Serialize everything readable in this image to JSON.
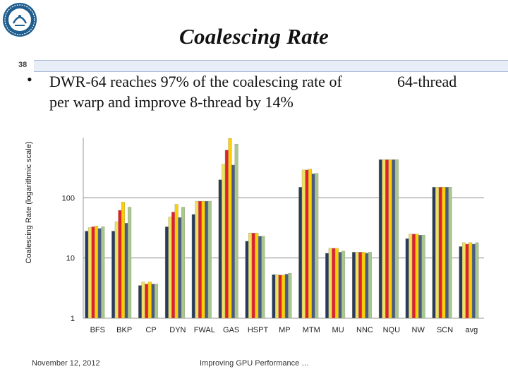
{
  "slide": {
    "title": "Coalescing Rate",
    "number": "38",
    "bullet_line1": "DWR-64 reaches 97% of the coalescing rate of",
    "bullet_line1b": "64-thread",
    "bullet_line2": "per warp and improve 8-thread by 14%",
    "footer_date": "November 12, 2012",
    "footer_title": "Improving GPU Performance …"
  },
  "colors": {
    "series": [
      "#2a3a5e",
      "#f0e060",
      "#e0202a",
      "#ffd000",
      "#4a5a80",
      "#a8c890"
    ],
    "bar_stroke": "#9a9a7a",
    "axis": "#999999",
    "grid": "#888888",
    "rule_bar": "#e8eef7"
  },
  "chart_data": {
    "type": "bar",
    "title": "",
    "xlabel": "",
    "ylabel": "Coalescing Rate (logarithmic scale)",
    "yscale": "log",
    "ylim": [
      1,
      1000
    ],
    "yticks": [
      1,
      10,
      100
    ],
    "ytick_labels": [
      "1",
      "10",
      "100"
    ],
    "legend": "none",
    "categories": [
      "BFS",
      "BKP",
      "CP",
      "DYN",
      "FWAL",
      "GAS",
      "HSPT",
      "MP",
      "MTM",
      "MU",
      "NNC",
      "NQU",
      "NW",
      "SCN",
      "avg"
    ],
    "series": [
      {
        "name": "series-1",
        "values": [
          28,
          28,
          3.5,
          33,
          53,
          200,
          19,
          5.3,
          150,
          12,
          12.5,
          430,
          21,
          150,
          15.5
        ]
      },
      {
        "name": "series-2",
        "values": [
          32,
          40,
          4.0,
          48,
          88,
          360,
          26,
          5.3,
          290,
          14.5,
          12.5,
          430,
          25,
          150,
          18
        ]
      },
      {
        "name": "series-3",
        "values": [
          33,
          62,
          3.7,
          58,
          88,
          620,
          26,
          5.2,
          290,
          14.5,
          12.5,
          430,
          25,
          150,
          17
        ]
      },
      {
        "name": "series-4",
        "values": [
          34,
          85,
          4.0,
          78,
          88,
          970,
          26,
          5.2,
          300,
          14.5,
          12.5,
          430,
          25,
          150,
          18
        ]
      },
      {
        "name": "series-5",
        "values": [
          31,
          38,
          3.7,
          47,
          88,
          350,
          23,
          5.4,
          250,
          12.5,
          12,
          430,
          24,
          150,
          17
        ]
      },
      {
        "name": "series-6",
        "values": [
          33,
          70,
          3.7,
          70,
          88,
          780,
          23,
          5.6,
          255,
          13,
          12.5,
          430,
          24,
          150,
          18
        ]
      }
    ]
  }
}
